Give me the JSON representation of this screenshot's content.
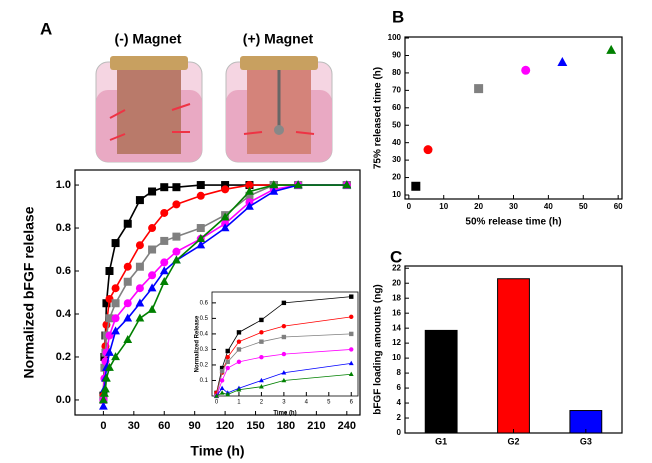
{
  "illustration": {
    "labels": [
      "(-) Magnet",
      "(+) Magnet"
    ]
  },
  "chart_data": [
    {
      "type": "line",
      "panel_label": "A",
      "x_label": "Time (h)",
      "y_label": "Normalized bFGF relelase",
      "xlim": [
        -28,
        253
      ],
      "xticks": [
        0,
        30,
        60,
        90,
        120,
        150,
        180,
        210,
        240
      ],
      "ylim": [
        -0.07,
        1.07
      ],
      "yticks": [
        {
          "value": 0,
          "label": "0.0"
        },
        0.2,
        0.4,
        0.6,
        0.8,
        {
          "value": 1,
          "label": "1.0"
        }
      ],
      "x": [
        0,
        1,
        2,
        3,
        6,
        12,
        24,
        36,
        48,
        60,
        72,
        96,
        120,
        144,
        168,
        192,
        240
      ],
      "series": [
        {
          "color": "#000000",
          "marker": "square",
          "values": [
            0.02,
            0.2,
            0.3,
            0.45,
            0.6,
            0.73,
            0.82,
            0.93,
            0.97,
            0.99,
            0.99,
            1.0,
            1.0,
            1.0,
            1.0,
            1.0,
            1.0
          ]
        },
        {
          "color": "#ff0000",
          "marker": "circle",
          "values": [
            0.02,
            0.15,
            0.25,
            0.35,
            0.47,
            0.52,
            0.62,
            0.72,
            0.8,
            0.87,
            0.91,
            0.95,
            0.98,
            1.0,
            1.0,
            1.0,
            1.0
          ]
        },
        {
          "color": "#808080",
          "marker": "square",
          "values": [
            0.0,
            0.15,
            0.22,
            0.3,
            0.38,
            0.45,
            0.55,
            0.62,
            0.7,
            0.74,
            0.76,
            0.8,
            0.86,
            0.95,
            1.0,
            1.0,
            1.0
          ]
        },
        {
          "color": "#ff00ff",
          "marker": "circle",
          "values": [
            0.0,
            0.1,
            0.18,
            0.22,
            0.3,
            0.38,
            0.45,
            0.52,
            0.58,
            0.64,
            0.69,
            0.75,
            0.82,
            0.92,
            0.98,
            1.0,
            1.0
          ]
        },
        {
          "color": "#0000ff",
          "marker": "triangle",
          "values": [
            -0.03,
            0.05,
            0.1,
            0.15,
            0.22,
            0.32,
            0.38,
            0.45,
            0.52,
            0.6,
            0.65,
            0.72,
            0.8,
            0.9,
            0.97,
            1.0,
            1.0
          ]
        },
        {
          "color": "#008000",
          "marker": "triangle",
          "values": [
            0.0,
            0.03,
            0.05,
            0.1,
            0.15,
            0.2,
            0.28,
            0.38,
            0.42,
            0.55,
            0.65,
            0.75,
            0.85,
            0.97,
            1.0,
            1.0,
            1.0
          ]
        }
      ]
    },
    {
      "type": "line",
      "x_label": "Time (h)",
      "y_label": "Normalized Release",
      "xlim": [
        -0.2,
        6.3
      ],
      "xticks": [
        0,
        1,
        2,
        3,
        4,
        5,
        6
      ],
      "ylim": [
        0,
        0.67
      ],
      "yticks": [
        0.1,
        0.2,
        0.3,
        0.4,
        0.5,
        0.6
      ],
      "x": [
        0,
        0.25,
        0.5,
        1,
        2,
        3,
        6
      ],
      "series": [
        {
          "color": "#000000",
          "marker": "square",
          "values": [
            0.02,
            0.18,
            0.29,
            0.41,
            0.49,
            0.6,
            0.64
          ]
        },
        {
          "color": "#ff0000",
          "marker": "circle",
          "values": [
            0.02,
            0.15,
            0.25,
            0.35,
            0.41,
            0.45,
            0.51
          ]
        },
        {
          "color": "#808080",
          "marker": "square",
          "values": [
            0.0,
            0.16,
            0.22,
            0.3,
            0.35,
            0.38,
            0.4
          ]
        },
        {
          "color": "#ff00ff",
          "marker": "circle",
          "values": [
            0.0,
            0.1,
            0.18,
            0.22,
            0.25,
            0.27,
            0.3
          ]
        },
        {
          "color": "#0000ff",
          "marker": "triangle",
          "values": [
            0.0,
            0.05,
            0.02,
            0.05,
            0.1,
            0.15,
            0.21
          ]
        },
        {
          "color": "#008000",
          "marker": "triangle",
          "values": [
            0.0,
            0.02,
            0.01,
            0.04,
            0.06,
            0.1,
            0.14
          ]
        }
      ]
    },
    {
      "type": "scatter",
      "panel_label": "B",
      "x_label": "50% release time (h)",
      "y_label": "75% released time (h)",
      "xlim": [
        -1.1,
        61.1
      ],
      "xticks": [
        0,
        10,
        20,
        30,
        40,
        50,
        60
      ],
      "ylim": [
        7.7,
        100.6
      ],
      "yticks": [
        10,
        20,
        30,
        40,
        50,
        60,
        70,
        80,
        90,
        100
      ],
      "x": [
        2,
        5.5,
        20,
        33.5,
        44,
        58
      ],
      "values": [
        15,
        36,
        71,
        81.5,
        86,
        93
      ],
      "colors": [
        "#000000",
        "#ff0000",
        "#808080",
        "#ff00ff",
        "#0000ff",
        "#008000"
      ],
      "markers": [
        "square",
        "circle",
        "square",
        "circle",
        "triangle",
        "triangle"
      ]
    },
    {
      "type": "bar",
      "panel_label": "C",
      "y_label": "bFGF loading amounts (ng)",
      "categories": [
        "G1",
        "G2",
        "G3"
      ],
      "values": [
        13.7,
        20.6,
        3.0
      ],
      "colors": [
        "#000000",
        "#ff0000",
        "#0000ff"
      ],
      "ylim": [
        0,
        22.3
      ],
      "yticks": [
        0,
        2,
        4,
        6,
        8,
        10,
        12,
        14,
        16,
        18,
        20,
        22
      ]
    }
  ]
}
